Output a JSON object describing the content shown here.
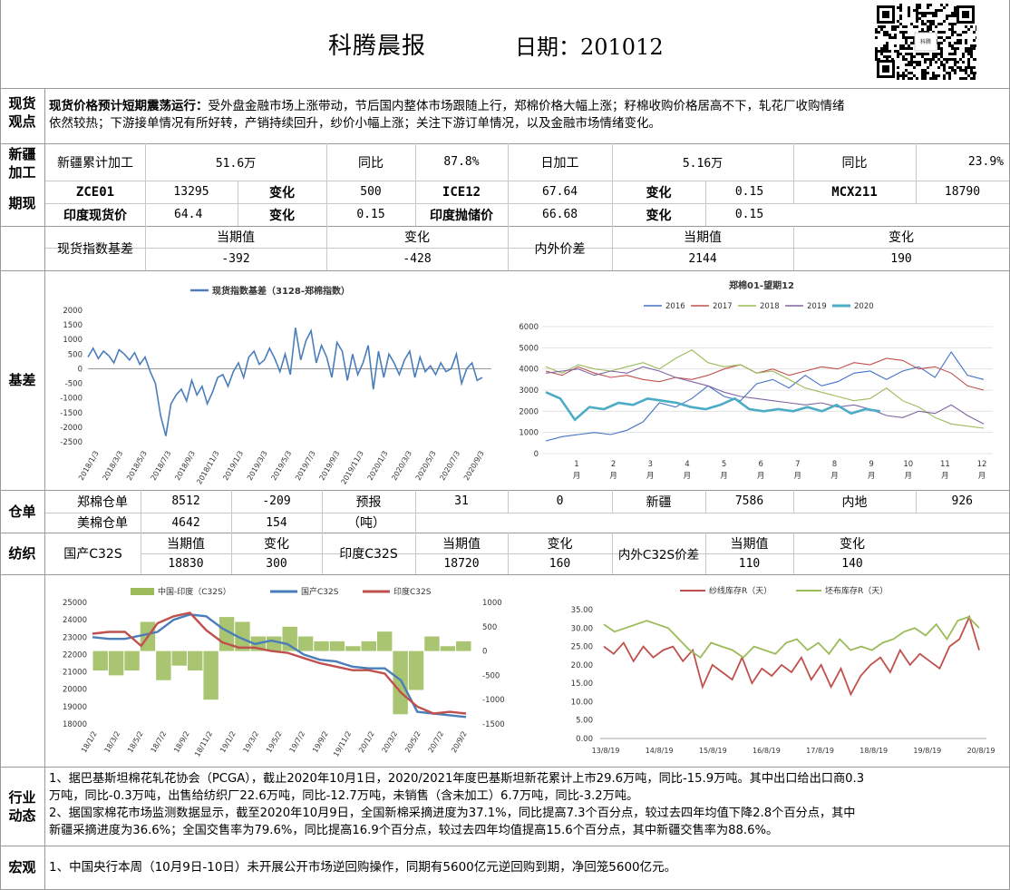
{
  "header": {
    "title": "科腾晨报",
    "date_label": "日期：201012"
  },
  "spot": {
    "label_top": "现货",
    "label_bottom": "观点",
    "headline": "现货价格预计短期震荡运行：",
    "body_line1": "受外盘金融市场上涨带动，节后国内整体市场跟随上行，郑棉价格大幅上涨；籽棉收购价格居高不下，轧花厂收购情绪",
    "body_line2": "依然较热；下游接单情况有所好转，产销持续回升，纱价小幅上涨；关注下游订单情况，以及金融市场情绪变化。"
  },
  "xinjiang": {
    "label_top": "新疆",
    "label_bottom": "加工",
    "cum_label": "新疆累计加工",
    "cum_value": "51.6万",
    "yoy_label1": "同比",
    "yoy_value1": "87.8%",
    "daily_label": "日加工",
    "daily_value": "5.16万",
    "yoy_label2": "同比",
    "yoy_value2": "23.9%"
  },
  "futures": {
    "label": "期现",
    "row1": [
      "ZCE01",
      "13295",
      "变化",
      "500",
      "ICE12",
      "67.64",
      "变化",
      "0.15",
      "MCX211",
      "18790"
    ],
    "row2": [
      "印度现货价",
      "64.4",
      "变化",
      "0.15",
      "印度抛储价",
      "66.68",
      "变化",
      "0.15"
    ]
  },
  "basis": {
    "label": "基差",
    "spot_index_label": "现货指数基差",
    "cur_label1": "当期值",
    "chg_label1": "变化",
    "cur_value1": "-392",
    "chg_value1": "-428",
    "inout_label": "内外价差",
    "cur_label2": "当期值",
    "chg_label2": "变化",
    "cur_value2": "2144",
    "chg_value2": "190"
  },
  "warehouse": {
    "label": "仓单",
    "zce_label": "郑棉仓单",
    "zce_value": "8512",
    "zce_change": "-209",
    "forecast_label": "预报",
    "unit_label": "（吨）",
    "forecast_value": "31",
    "forecast_extra": "0",
    "xinjiang_label": "新疆",
    "xinjiang_value": "7586",
    "inland_label": "内地",
    "inland_value": "926",
    "us_label": "美棉仓单",
    "us_value": "4642",
    "us_change": "154"
  },
  "textile": {
    "label": "纺织",
    "dom_label": "国产C32S",
    "cur_label1": "当期值",
    "chg_label1": "变化",
    "dom_value": "18830",
    "dom_change": "300",
    "ind_label": "印度C32S",
    "cur_label2": "当期值",
    "chg_label2": "变化",
    "ind_value": "18720",
    "ind_change": "160",
    "spread_label": "内外C32S价差",
    "cur_label3": "当期值",
    "chg_label3": "变化",
    "spread_value": "110",
    "spread_change": "140"
  },
  "industry": {
    "label_top": "行业",
    "label_bottom": "动态",
    "lines": [
      "1、据巴基斯坦棉花轧花协会（PCGA），截止2020年10月1日，2020/2021年度巴基斯坦新花累计上市29.6万吨，同比-15.9万吨。其中出口给出口商0.3",
      "万吨，同比-0.3万吨，出售给纺织厂22.6万吨，同比-12.7万吨，未销售（含未加工）6.7万吨，同比-3.2万吨。",
      "2、据国家棉花市场监测数据显示，截至2020年10月9日，全国新棉采摘进度为37.1%，同比提高7.3个百分点，较过去四年均值下降2.8个百分点，其中",
      "新疆采摘进度为36.6%；全国交售率为79.6%，同比提高16.9个百分点，较过去四年均值提高15.6个百分点，其中新疆交售率为88.6%。"
    ]
  },
  "macro": {
    "label": "宏观",
    "text": "1、中国央行本周（10月9日-10日）未开展公开市场逆回购操作，同期有5600亿元逆回购到期，净回笼5600亿元。"
  },
  "chart_data": [
    {
      "type": "line",
      "title": "",
      "series": [
        {
          "name": "现货指数基差（3128-郑棉指数）",
          "color": "#4a7ebb"
        }
      ],
      "x_ticks": [
        "2018/1/3",
        "2018/3/3",
        "2018/5/3",
        "2018/7/3",
        "2018/9/3",
        "2018/11/3",
        "2019/1/3",
        "2019/3/3",
        "2019/5/3",
        "2019/7/3",
        "2019/9/3",
        "2019/11/3",
        "2020/1/3",
        "2020/3/3",
        "2020/5/3",
        "2020/7/3",
        "2020/9/3"
      ],
      "y_ticks": [
        "2000",
        "1500",
        "1000",
        "500",
        "0",
        "-500",
        "-1000",
        "-1500",
        "-2000",
        "-2500"
      ],
      "ylim": [
        -2500,
        2000
      ],
      "values": [
        400,
        700,
        350,
        600,
        450,
        200,
        650,
        500,
        300,
        550,
        150,
        400,
        -100,
        -500,
        -1600,
        -2300,
        -1200,
        -900,
        -700,
        -1100,
        -400,
        -900,
        -600,
        -1200,
        -800,
        -300,
        -200,
        -600,
        -100,
        200,
        -300,
        400,
        600,
        150,
        300,
        700,
        350,
        -100,
        500,
        -200,
        1400,
        300,
        950,
        1300,
        200,
        800,
        400,
        -300,
        900,
        600,
        -400,
        500,
        -200,
        200,
        800,
        -700,
        600,
        -300,
        500,
        200,
        -200,
        300,
        600,
        -300,
        400,
        -100,
        100,
        -200,
        200,
        -100,
        0,
        500,
        -500,
        0,
        200,
        -400,
        -300
      ]
    },
    {
      "type": "line",
      "title": "郑棉01-望期12",
      "x_ticks": [
        "1月",
        "2月",
        "3月",
        "4月",
        "5月",
        "6月",
        "7月",
        "8月",
        "9月",
        "10月",
        "11月",
        "12月"
      ],
      "y_ticks": [
        "6000",
        "5000",
        "4000",
        "3000",
        "2000",
        "1000",
        "0"
      ],
      "ylim": [
        0,
        6000
      ],
      "series": [
        {
          "name": "2016",
          "color": "#4472c4",
          "values": [
            600,
            800,
            900,
            1000,
            900,
            1100,
            1500,
            2400,
            2200,
            2600,
            3200,
            2700,
            2500,
            3300,
            3500,
            3100,
            3700,
            3200,
            3400,
            3800,
            3900,
            3500,
            3900,
            4100,
            3600,
            4800,
            3700,
            3500
          ]
        },
        {
          "name": "2017",
          "color": "#c0504d",
          "values": [
            3900,
            3700,
            4100,
            3800,
            3600,
            3700,
            3500,
            3400,
            3600,
            3500,
            3700,
            4000,
            4200,
            3800,
            4000,
            3700,
            3900,
            4100,
            4000,
            4300,
            4200,
            4500,
            4400,
            4000,
            4100,
            3800,
            3200,
            3000
          ]
        },
        {
          "name": "2018",
          "color": "#9bbb59",
          "values": [
            4100,
            3800,
            4200,
            4000,
            3900,
            4100,
            4300,
            4000,
            4500,
            4900,
            4300,
            4100,
            4200,
            3800,
            3900,
            3500,
            3100,
            2900,
            2700,
            2500,
            2600,
            3100,
            2500,
            2200,
            1700,
            1400,
            1300,
            1200
          ]
        },
        {
          "name": "2019",
          "color": "#8064a2",
          "values": [
            3800,
            3900,
            4000,
            3700,
            3900,
            3800,
            4100,
            3900,
            3600,
            3400,
            3200,
            2900,
            2700,
            2600,
            2500,
            2400,
            2300,
            2400,
            2200,
            2300,
            2100,
            1800,
            1700,
            2000,
            1900,
            2300,
            1800,
            1400
          ]
        },
        {
          "name": "2020",
          "color": "#4bacc6",
          "values": [
            2900,
            2600,
            1600,
            2200,
            2100,
            2400,
            2300,
            2600,
            2500,
            2400,
            2200,
            2100,
            2300,
            2600,
            2100,
            2000,
            2100,
            2000,
            2200,
            2000,
            2300,
            1900,
            2100,
            2000
          ]
        }
      ]
    },
    {
      "type": "line",
      "title": "",
      "series": [
        {
          "name": "中国-印度（C32S）",
          "color": "#9bbb59",
          "kind": "bar",
          "axis": "right"
        },
        {
          "name": "国产C32S",
          "color": "#4a7ebb",
          "axis": "left",
          "values": [
            23000,
            22900,
            22900,
            23100,
            23300,
            24000,
            24300,
            24200,
            23500,
            23000,
            22600,
            22800,
            22600,
            22000,
            21700,
            21600,
            21300,
            21200,
            21200,
            20500,
            18700,
            18600,
            18500,
            18400
          ]
        },
        {
          "name": "印度C32S",
          "color": "#c0504d",
          "axis": "left",
          "values": [
            23200,
            23300,
            23300,
            22500,
            23800,
            24200,
            24400,
            23400,
            22700,
            22400,
            22400,
            22200,
            22100,
            21800,
            21500,
            21300,
            21100,
            21100,
            20900,
            19800,
            19000,
            18600,
            18700,
            18600
          ]
        }
      ],
      "bars": [
        -400,
        -500,
        -400,
        600,
        -600,
        -300,
        -400,
        -1000,
        700,
        600,
        300,
        300,
        500,
        300,
        200,
        200,
        100,
        200,
        400,
        -1300,
        -800,
        300,
        100,
        200
      ],
      "x_ticks": [
        "18/1/2",
        "18/3/2",
        "18/5/2",
        "18/7/2",
        "18/9/2",
        "18/11/2",
        "19/1/2",
        "19/3/2",
        "19/5/2",
        "19/7/2",
        "19/9/2",
        "19/11/2",
        "20/1/2",
        "20/3/2",
        "20/5/2",
        "20/7/2",
        "20/9/2"
      ],
      "y_ticks_left": [
        "25000",
        "24000",
        "23000",
        "22000",
        "21000",
        "20000",
        "19000",
        "18000"
      ],
      "y_ticks_right": [
        "1000",
        "500",
        "0",
        "-500",
        "-1000",
        "-1500"
      ],
      "ylim": [
        18000,
        25000
      ],
      "ylim_right": [
        -1500,
        1000
      ]
    },
    {
      "type": "line",
      "title": "",
      "series": [
        {
          "name": "纱线库存R（天）",
          "color": "#c0504d",
          "values": [
            25,
            23,
            26,
            21,
            25,
            22,
            24,
            25,
            21,
            24,
            14,
            20,
            18,
            16,
            22,
            15,
            19,
            17,
            20,
            18,
            22,
            16,
            20,
            14,
            19,
            12,
            17,
            20,
            22,
            18,
            24,
            20,
            23,
            21,
            19,
            25,
            27,
            33,
            24
          ]
        },
        {
          "name": "坯布库存R（天）",
          "color": "#9bbb59",
          "values": [
            31,
            29,
            30,
            31,
            32,
            31,
            30,
            27,
            24,
            22,
            26,
            25,
            24,
            22,
            25,
            24,
            23,
            26,
            27,
            24,
            26,
            23,
            27,
            24,
            25,
            24,
            26,
            27,
            29,
            30,
            28,
            31,
            27,
            32,
            33,
            30
          ]
        }
      ],
      "x_ticks": [
        "13/8/19",
        "14/8/19",
        "15/8/19",
        "16/8/19",
        "17/8/19",
        "18/8/19",
        "19/8/19",
        "20/8/19"
      ],
      "y_ticks": [
        "35.00",
        "30.00",
        "25.00",
        "20.00",
        "15.00",
        "10.00",
        "5.00",
        "0.00"
      ],
      "ylim": [
        0,
        35
      ]
    }
  ]
}
